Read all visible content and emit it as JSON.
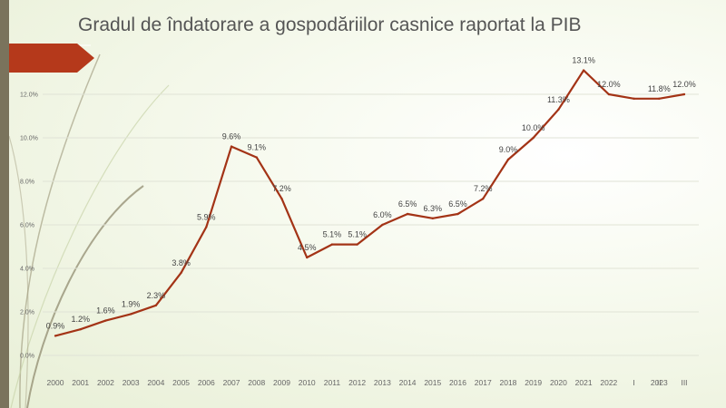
{
  "title": "Gradul de îndatorare a gospodăriilor casnice raportat la PIB",
  "colors": {
    "line": "#a33316",
    "accent": "#b5391b",
    "bar": "#7a735c"
  },
  "chart_data": {
    "type": "line",
    "title": "Gradul de îndatorare a gospodăriilor casnice raportat la PIB",
    "categories": [
      "2000",
      "2001",
      "2002",
      "2003",
      "2004",
      "2005",
      "2006",
      "2007",
      "2008",
      "2009",
      "2010",
      "2011",
      "2012",
      "2013",
      "2014",
      "2015",
      "2016",
      "2017",
      "2018",
      "2019",
      "2020",
      "2021",
      "2022",
      "I",
      "II",
      "III"
    ],
    "group_labels": [
      {
        "label": "2023",
        "categories": [
          "I",
          "II",
          "III"
        ]
      }
    ],
    "series": [
      {
        "values": [
          0.9,
          1.2,
          1.6,
          1.9,
          2.3,
          3.8,
          5.9,
          9.6,
          9.1,
          7.2,
          4.5,
          5.1,
          5.1,
          6.0,
          6.5,
          6.3,
          6.5,
          7.2,
          9.0,
          10.0,
          11.3,
          13.1,
          12.0,
          11.8,
          11.8,
          12.0
        ],
        "labels": [
          "0.9%",
          "1.2%",
          "1.6%",
          "1.9%",
          "2.3%",
          "3.8%",
          "5.9%",
          "9.6%",
          "9.1%",
          "7.2%",
          "4.5%",
          "5.1%",
          "5.1%",
          "6.0%",
          "6.5%",
          "6.3%",
          "6.5%",
          "7.2%",
          "9.0%",
          "10.0%",
          "11.3%",
          "13.1%",
          "12.0%",
          "",
          "11.8%",
          "12.0%"
        ]
      }
    ],
    "yticks": [
      "0.0%",
      "2.0%",
      "4.0%",
      "6.0%",
      "8.0%",
      "10.0%",
      "12.0%"
    ],
    "ylim": [
      0,
      14
    ],
    "grid": true,
    "legend": "none"
  }
}
